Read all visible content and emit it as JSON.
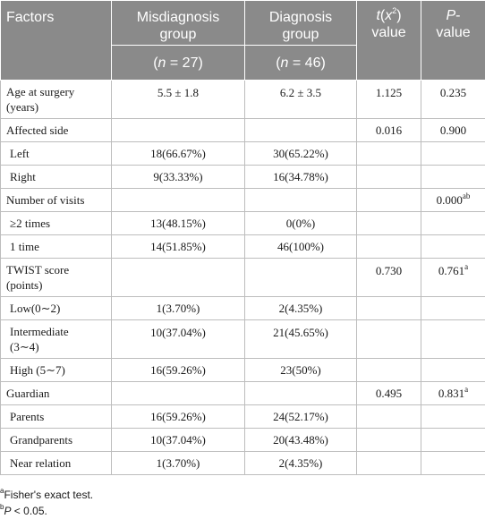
{
  "headers": {
    "factors": "Factors",
    "misdiagnosis_line1": "Misdiagnosis",
    "misdiagnosis_line2": "group",
    "diagnosis_line1": "Diagnosis",
    "diagnosis_line2": "group",
    "stat_t": "t",
    "stat_x": "x",
    "stat_exp": "2",
    "stat_close": ")",
    "stat_open": "(",
    "stat_value": "value",
    "p_letter": "P",
    "p_dash": "-",
    "p_value": "value",
    "n_open": "(",
    "n_letter": "n",
    "mis_n": " = 27)",
    "dia_n": " = 46)"
  },
  "rows": [
    {
      "factor_line1": "Age at surgery",
      "factor_line2": "(years)",
      "mis": "5.5 ± 1.8",
      "dia": "6.2 ± 3.5",
      "t": "1.125",
      "p": "0.235",
      "p_sup": ""
    },
    {
      "factor": "Affected side",
      "mis": "",
      "dia": "",
      "t": "0.016",
      "p": "0.900",
      "p_sup": ""
    },
    {
      "factor": "Left",
      "mis": "18(66.67%)",
      "dia": "30(65.22%)",
      "t": "",
      "p": "",
      "p_sup": ""
    },
    {
      "factor": "Right",
      "mis": "9(33.33%)",
      "dia": "16(34.78%)",
      "t": "",
      "p": "",
      "p_sup": ""
    },
    {
      "factor": "Number of visits",
      "mis": "",
      "dia": "",
      "t": "",
      "p": "0.000",
      "p_sup": "ab"
    },
    {
      "factor": "≥2 times",
      "mis": "13(48.15%)",
      "dia": "0(0%)",
      "t": "",
      "p": "",
      "p_sup": ""
    },
    {
      "factor": "1 time",
      "mis": "14(51.85%)",
      "dia": "46(100%)",
      "t": "",
      "p": "",
      "p_sup": ""
    },
    {
      "factor_line1": "TWIST score",
      "factor_line2": "(points)",
      "mis": "",
      "dia": "",
      "t": "0.730",
      "p": "0.761",
      "p_sup": "a"
    },
    {
      "factor": "Low(0∼2)",
      "mis": "1(3.70%)",
      "dia": "2(4.35%)",
      "t": "",
      "p": "",
      "p_sup": ""
    },
    {
      "factor_line1": "Intermediate",
      "factor_line2": "(3∼4)",
      "mis": "10(37.04%)",
      "dia": "21(45.65%)",
      "t": "",
      "p": "",
      "p_sup": ""
    },
    {
      "factor": "High (5∼7)",
      "mis": "16(59.26%)",
      "dia": "23(50%)",
      "t": "",
      "p": "",
      "p_sup": ""
    },
    {
      "factor": "Guardian",
      "mis": "",
      "dia": "",
      "t": "0.495",
      "p": "0.831",
      "p_sup": "a"
    },
    {
      "factor": "Parents",
      "mis": "16(59.26%)",
      "dia": "24(52.17%)",
      "t": "",
      "p": "",
      "p_sup": ""
    },
    {
      "factor": "Grandparents",
      "mis": "10(37.04%)",
      "dia": "20(43.48%)",
      "t": "",
      "p": "",
      "p_sup": ""
    },
    {
      "factor": "Near relation",
      "mis": "1(3.70%)",
      "dia": "2(4.35%)",
      "t": "",
      "p": "",
      "p_sup": ""
    }
  ],
  "footnotes": {
    "a_mark": "a",
    "a_text": "Fisher's exact test.",
    "b_mark": "b",
    "b_letter": "P",
    "b_text": " < 0.05."
  }
}
